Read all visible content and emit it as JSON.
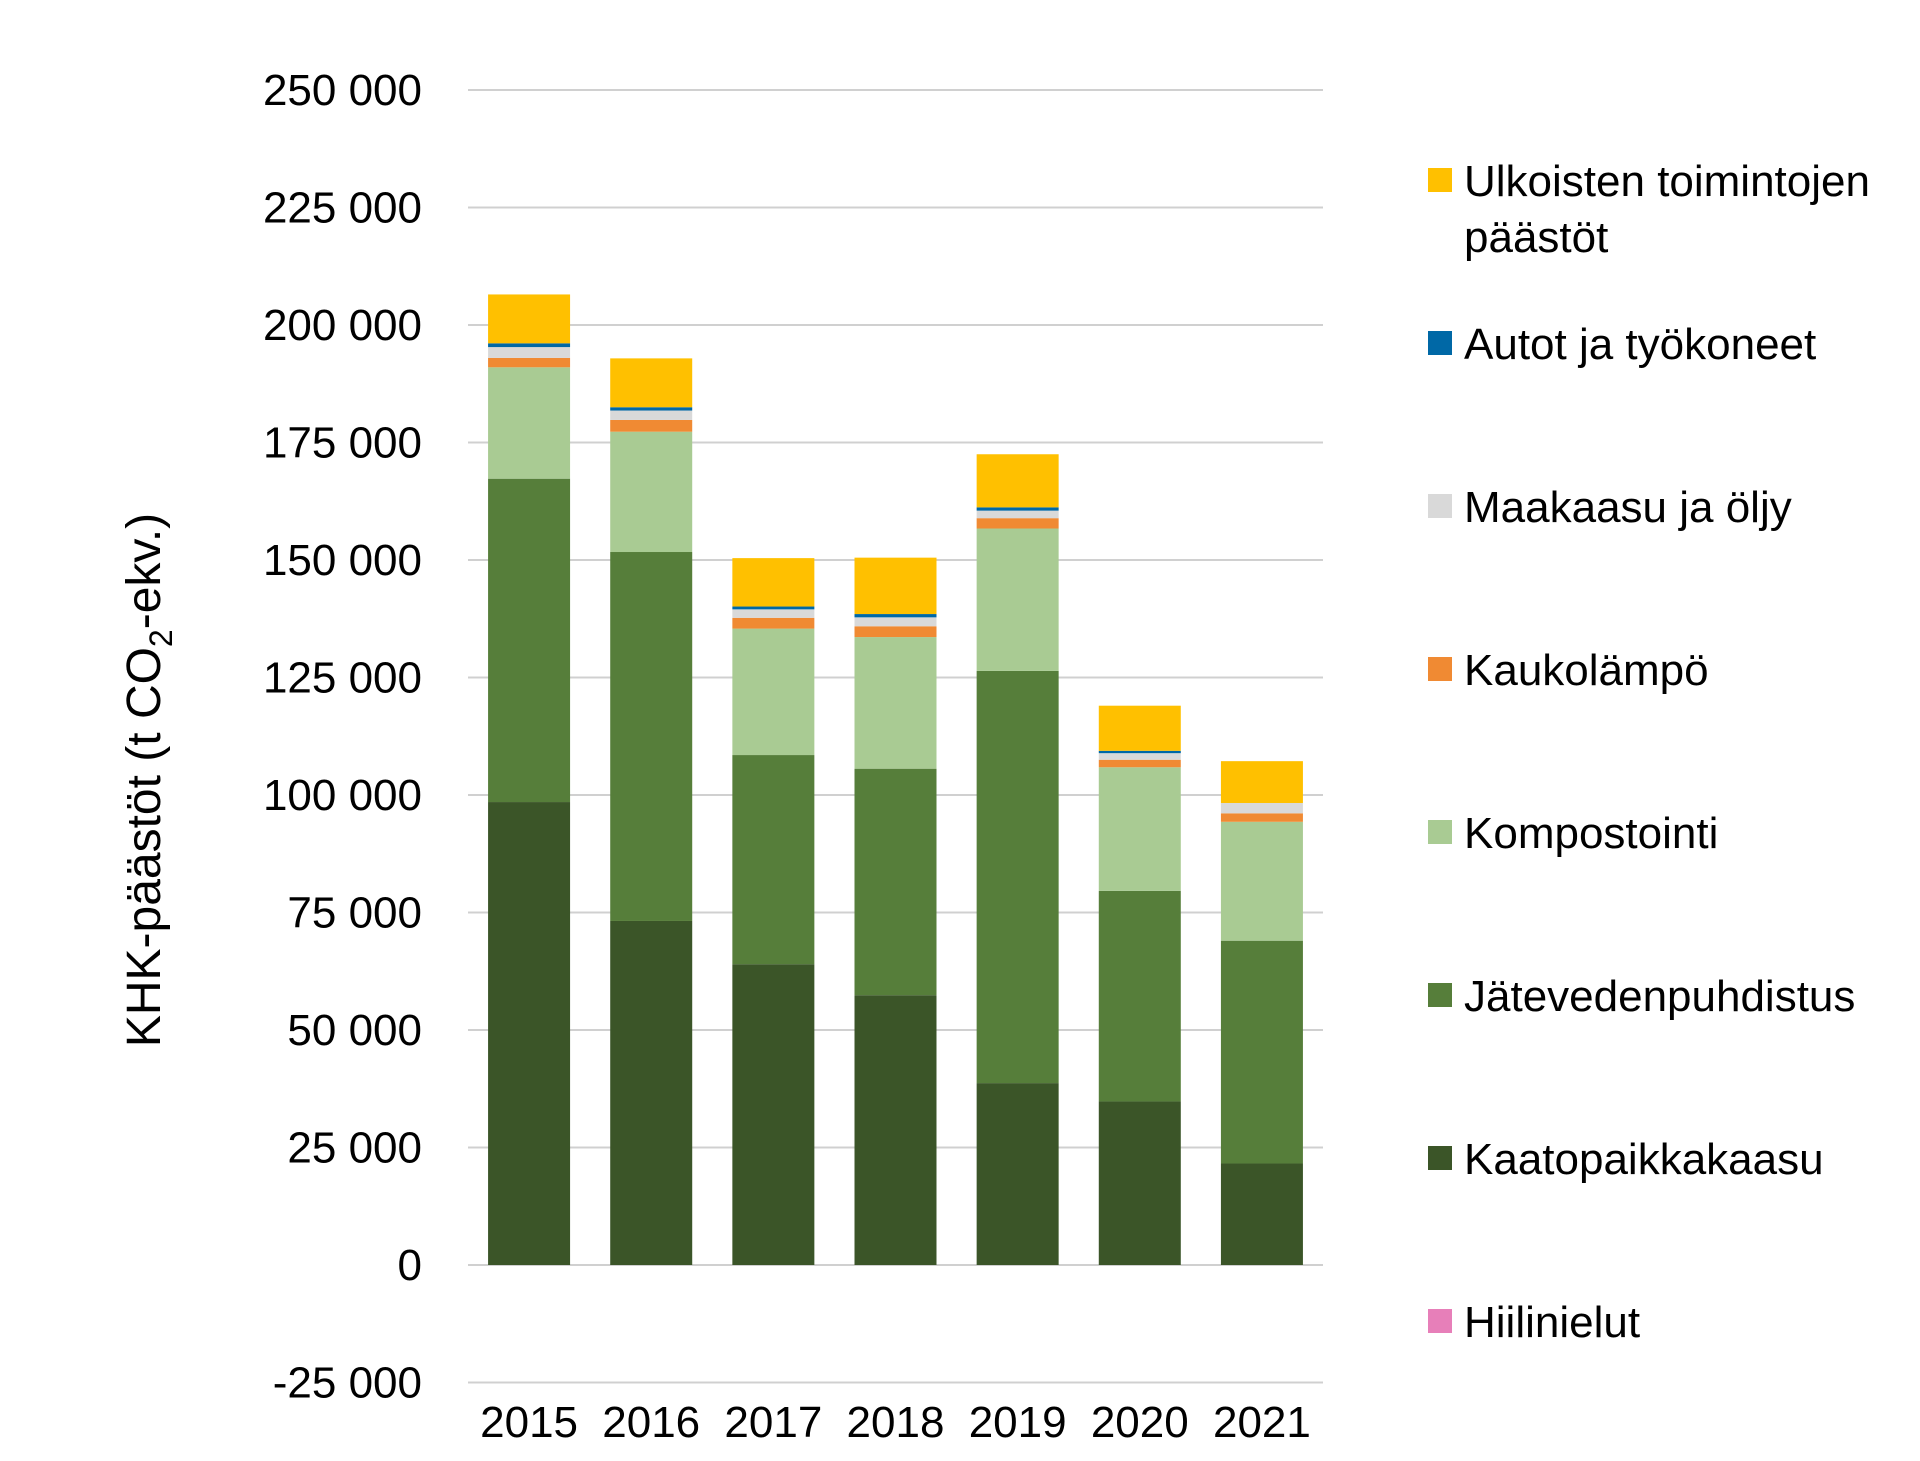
{
  "chart_data": {
    "type": "bar",
    "stacked": true,
    "title": "",
    "xlabel": "",
    "ylabel": "KHK-päästöt (t CO2-ekv.)",
    "ylabel_parts": {
      "before": "KHK-päästöt (t CO",
      "subscript": "2",
      "after": "-ekv.)"
    },
    "ylim": [
      -25000,
      250000
    ],
    "yticks": [
      -25000,
      0,
      25000,
      50000,
      75000,
      100000,
      125000,
      150000,
      175000,
      200000,
      225000,
      250000
    ],
    "ytick_labels": [
      "-25 000",
      "0",
      "25 000",
      "50 000",
      "75 000",
      "100 000",
      "125 000",
      "150 000",
      "175 000",
      "200 000",
      "225 000",
      "250 000"
    ],
    "grid": true,
    "legend_position": "right",
    "categories": [
      "2015",
      "2016",
      "2017",
      "2018",
      "2019",
      "2020",
      "2021"
    ],
    "series": [
      {
        "name": "Hiilinielut",
        "color": "#E77FB9",
        "values": [
          0,
          0,
          0,
          0,
          0,
          0,
          0
        ]
      },
      {
        "name": "Kaatopaikkakaasu",
        "color": "#3B5528",
        "values": [
          98500,
          73200,
          64000,
          57400,
          38700,
          34800,
          21600
        ]
      },
      {
        "name": "Jätevedenpuhdistus",
        "color": "#567E3A",
        "values": [
          68800,
          78500,
          44500,
          48200,
          87700,
          44800,
          47400
        ]
      },
      {
        "name": "Kompostointi",
        "color": "#A9CB93",
        "values": [
          23700,
          25600,
          26900,
          28000,
          30300,
          26300,
          25300
        ]
      },
      {
        "name": "Kaukolämpö",
        "color": "#F08A33",
        "values": [
          2000,
          2500,
          2300,
          2300,
          2200,
          1600,
          1800
        ]
      },
      {
        "name": "Maakaasu ja öljy",
        "color": "#D9D9D9",
        "values": [
          2300,
          2000,
          1800,
          1900,
          1600,
          1400,
          2200
        ]
      },
      {
        "name": "Autot ja työkoneet",
        "color": "#0068A6",
        "values": [
          800,
          700,
          600,
          700,
          700,
          500,
          0
        ]
      },
      {
        "name": "Ulkoisten toimintojen päästöt",
        "color": "#FFC000",
        "values": [
          10400,
          10400,
          10300,
          12000,
          11300,
          9600,
          8900
        ]
      }
    ],
    "legend": [
      {
        "lines": [
          "Ulkoisten toimintojen",
          "päästöt"
        ],
        "color": "#FFC000"
      },
      {
        "lines": [
          "Autot ja työkoneet"
        ],
        "color": "#0068A6"
      },
      {
        "lines": [
          "Maakaasu ja öljy"
        ],
        "color": "#D9D9D9"
      },
      {
        "lines": [
          "Kaukolämpö"
        ],
        "color": "#F08A33"
      },
      {
        "lines": [
          "Kompostointi"
        ],
        "color": "#A9CB93"
      },
      {
        "lines": [
          "Jätevedenpuhdistus"
        ],
        "color": "#567E3A"
      },
      {
        "lines": [
          "Kaatopaikkakaasu"
        ],
        "color": "#3B5528"
      },
      {
        "lines": [
          "Hiilinielut"
        ],
        "color": "#E77FB9"
      }
    ],
    "gridline_color": "#D0D0D0"
  }
}
